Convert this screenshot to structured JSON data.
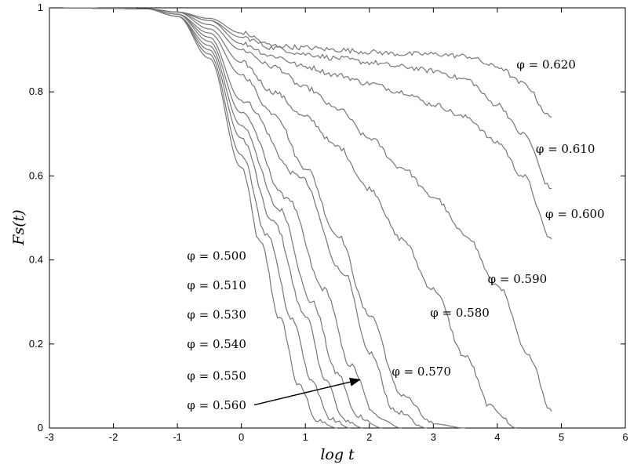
{
  "chart_data": {
    "type": "line",
    "title": "",
    "xlabel": "log t",
    "ylabel": "Fs(t)",
    "xlim": [
      -3,
      6
    ],
    "ylim": [
      0,
      1
    ],
    "x_ticks": [
      "-3",
      "-2",
      "-1",
      "0",
      "1",
      "2",
      "3",
      "4",
      "5",
      "6"
    ],
    "y_ticks": [
      "0",
      "0.2",
      "0.4",
      "0.6",
      "0.8",
      "1"
    ],
    "grid": false,
    "legend": "none",
    "series": [
      {
        "name": "φ = 0.500",
        "x": [
          -3,
          -1.5,
          -1,
          -0.5,
          0,
          0.3,
          0.6,
          0.9,
          1.2,
          1.5
        ],
        "y": [
          1,
          0.998,
          0.98,
          0.88,
          0.62,
          0.44,
          0.26,
          0.1,
          0.015,
          0
        ]
      },
      {
        "name": "φ = 0.510",
        "x": [
          -3,
          -1.5,
          -1,
          -0.5,
          0,
          0.4,
          0.8,
          1.1,
          1.4,
          1.7
        ],
        "y": [
          1,
          0.998,
          0.98,
          0.89,
          0.65,
          0.46,
          0.26,
          0.11,
          0.02,
          0
        ]
      },
      {
        "name": "φ = 0.530",
        "x": [
          -3,
          -1.5,
          -1,
          -0.5,
          0,
          0.5,
          1.0,
          1.3,
          1.6,
          1.9
        ],
        "y": [
          1,
          0.998,
          0.98,
          0.9,
          0.69,
          0.49,
          0.27,
          0.12,
          0.02,
          0
        ]
      },
      {
        "name": "φ = 0.540",
        "x": [
          -3,
          -1.5,
          -1,
          -0.5,
          0,
          0.6,
          1.1,
          1.5,
          1.8,
          2.2
        ],
        "y": [
          1,
          0.998,
          0.98,
          0.91,
          0.72,
          0.52,
          0.3,
          0.13,
          0.03,
          0
        ]
      },
      {
        "name": "φ = 0.550",
        "x": [
          -3,
          -1.5,
          -1,
          -0.5,
          0,
          0.7,
          1.3,
          1.7,
          2.1,
          2.5
        ],
        "y": [
          1,
          0.998,
          0.985,
          0.92,
          0.75,
          0.55,
          0.33,
          0.15,
          0.03,
          0
        ]
      },
      {
        "name": "φ = 0.560",
        "x": [
          -3,
          -1.5,
          -1,
          -0.5,
          0,
          0.9,
          1.6,
          2.0,
          2.4,
          2.9
        ],
        "y": [
          1,
          0.998,
          0.985,
          0.93,
          0.78,
          0.6,
          0.37,
          0.18,
          0.04,
          0
        ]
      },
      {
        "name": "φ = 0.570",
        "x": [
          -3,
          -1.5,
          -1,
          -0.5,
          0,
          0.5,
          1.0,
          1.5,
          2.0,
          2.5,
          3.0,
          3.5
        ],
        "y": [
          1,
          0.998,
          0.985,
          0.94,
          0.84,
          0.75,
          0.62,
          0.46,
          0.27,
          0.08,
          0.01,
          0
        ]
      },
      {
        "name": "φ = 0.580",
        "x": [
          -3,
          -1.5,
          -1,
          -0.5,
          0,
          0.5,
          1.0,
          1.5,
          2.0,
          2.5,
          3.0,
          3.5,
          3.9,
          4.3
        ],
        "y": [
          1,
          0.998,
          0.99,
          0.95,
          0.87,
          0.8,
          0.74,
          0.67,
          0.57,
          0.45,
          0.33,
          0.17,
          0.05,
          0
        ]
      },
      {
        "name": "φ = 0.590",
        "x": [
          -3,
          -1.5,
          -1,
          -0.5,
          0,
          0.5,
          1.0,
          1.5,
          2.0,
          2.5,
          3.0,
          3.5,
          4.0,
          4.5,
          4.85
        ],
        "y": [
          1,
          0.998,
          0.99,
          0.96,
          0.9,
          0.86,
          0.81,
          0.76,
          0.69,
          0.62,
          0.55,
          0.46,
          0.34,
          0.17,
          0.04
        ]
      },
      {
        "name": "φ = 0.600",
        "x": [
          -3,
          -1.5,
          -1,
          -0.5,
          0,
          0.5,
          1.0,
          1.5,
          2.0,
          2.5,
          3.0,
          3.5,
          4.0,
          4.4,
          4.85
        ],
        "y": [
          1,
          0.998,
          0.99,
          0.97,
          0.915,
          0.885,
          0.86,
          0.84,
          0.82,
          0.8,
          0.77,
          0.74,
          0.68,
          0.6,
          0.45
        ]
      },
      {
        "name": "φ = 0.610",
        "x": [
          -3,
          -1.5,
          -1,
          -0.5,
          0,
          0.5,
          1.0,
          1.5,
          2.0,
          2.5,
          3.0,
          3.5,
          4.0,
          4.4,
          4.85
        ],
        "y": [
          1,
          0.998,
          0.99,
          0.97,
          0.93,
          0.905,
          0.89,
          0.88,
          0.87,
          0.86,
          0.85,
          0.83,
          0.77,
          0.7,
          0.57
        ]
      },
      {
        "name": "φ = 0.620",
        "x": [
          -3,
          -1.5,
          -1,
          -0.5,
          0,
          0.5,
          1.0,
          1.5,
          2.0,
          2.5,
          3.0,
          3.5,
          4.0,
          4.4,
          4.85
        ],
        "y": [
          1,
          0.998,
          0.99,
          0.975,
          0.94,
          0.91,
          0.905,
          0.9,
          0.895,
          0.89,
          0.89,
          0.885,
          0.86,
          0.82,
          0.74
        ]
      }
    ],
    "annotations": [
      {
        "text": "φ = 0.620",
        "x": 4.3,
        "y": 0.855
      },
      {
        "text": "φ = 0.610",
        "x": 4.6,
        "y": 0.655
      },
      {
        "text": "φ = 0.600",
        "x": 4.75,
        "y": 0.5
      },
      {
        "text": "φ = 0.590",
        "x": 3.85,
        "y": 0.345
      },
      {
        "text": "φ = 0.580",
        "x": 2.95,
        "y": 0.265
      },
      {
        "text": "φ = 0.570",
        "x": 2.35,
        "y": 0.125
      },
      {
        "text": "φ = 0.500",
        "x": -0.85,
        "y": 0.4
      },
      {
        "text": "φ = 0.510",
        "x": -0.85,
        "y": 0.33
      },
      {
        "text": "φ = 0.530",
        "x": -0.85,
        "y": 0.26
      },
      {
        "text": "φ = 0.540",
        "x": -0.85,
        "y": 0.19
      },
      {
        "text": "φ = 0.550",
        "x": -0.85,
        "y": 0.115
      },
      {
        "text": "φ = 0.560",
        "x": -0.85,
        "y": 0.045
      }
    ],
    "arrow": {
      "from_x": 0.2,
      "from_y": 0.055,
      "to_x": 1.85,
      "to_y": 0.115
    }
  }
}
